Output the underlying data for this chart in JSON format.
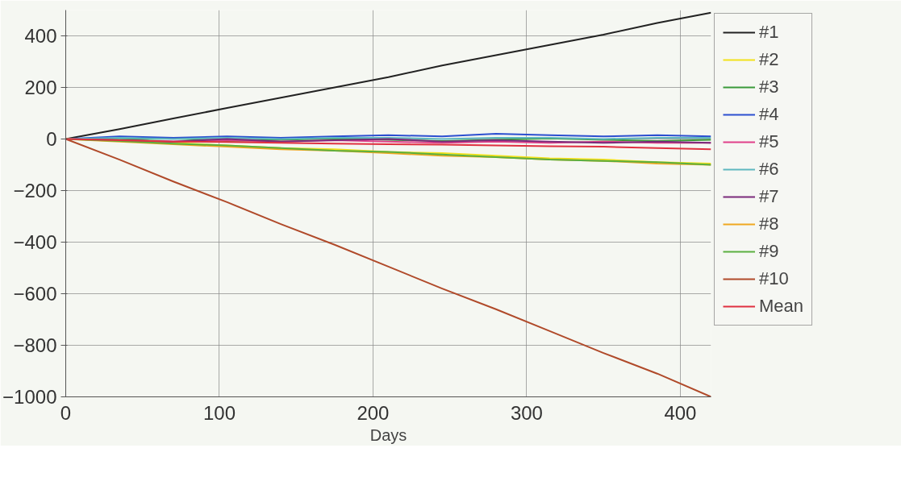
{
  "chart_data": {
    "type": "line",
    "xlabel": "Days",
    "x": [
      0,
      35,
      70,
      105,
      140,
      175,
      210,
      245,
      280,
      315,
      350,
      385,
      420
    ],
    "xlim": [
      0,
      420
    ],
    "xticks": [
      0,
      100,
      200,
      300,
      400
    ],
    "ylim": [
      -1000,
      500
    ],
    "yticks": [
      -1000,
      -800,
      -600,
      -400,
      -200,
      0,
      200,
      400
    ],
    "grid": true,
    "legend": "right",
    "line_style": "solid",
    "marker": "none",
    "series": [
      {
        "name": "#1",
        "color": "#222222",
        "values": [
          0,
          38,
          80,
          120,
          160,
          200,
          240,
          285,
          325,
          365,
          405,
          450,
          490
        ]
      },
      {
        "name": "#2",
        "color": "#f2e21b",
        "values": [
          0,
          -5,
          -15,
          -25,
          -35,
          -40,
          -50,
          -55,
          -65,
          -75,
          -80,
          -90,
          -95
        ]
      },
      {
        "name": "#3",
        "color": "#3a9a3a",
        "values": [
          0,
          -3,
          2,
          -8,
          -3,
          2,
          -3,
          -8,
          -3,
          2,
          -3,
          -8,
          -3
        ]
      },
      {
        "name": "#4",
        "color": "#2c4fd0",
        "values": [
          0,
          10,
          5,
          10,
          5,
          10,
          15,
          10,
          20,
          15,
          10,
          15,
          10
        ]
      },
      {
        "name": "#5",
        "color": "#e0408a",
        "values": [
          0,
          -5,
          -10,
          -5,
          -10,
          -5,
          -10,
          -15,
          -10,
          -15,
          -10,
          -15,
          -15
        ]
      },
      {
        "name": "#6",
        "color": "#5fb7c0",
        "values": [
          0,
          5,
          0,
          5,
          0,
          5,
          5,
          0,
          5,
          5,
          0,
          5,
          5
        ]
      },
      {
        "name": "#7",
        "color": "#7a2a7a",
        "values": [
          0,
          -5,
          -10,
          0,
          -10,
          -5,
          0,
          -10,
          -5,
          -10,
          -15,
          -10,
          -15
        ]
      },
      {
        "name": "#8",
        "color": "#f0a820",
        "values": [
          0,
          -10,
          -20,
          -30,
          -40,
          -45,
          -55,
          -65,
          -70,
          -80,
          -85,
          -95,
          -100
        ]
      },
      {
        "name": "#9",
        "color": "#5ab040",
        "values": [
          0,
          -8,
          -18,
          -25,
          -35,
          -45,
          -50,
          -60,
          -70,
          -80,
          -85,
          -90,
          -100
        ]
      },
      {
        "name": "#10",
        "color": "#b04a2a",
        "values": [
          0,
          -80,
          -165,
          -245,
          -330,
          -410,
          -495,
          -580,
          -660,
          -745,
          -830,
          -910,
          -1000
        ]
      },
      {
        "name": "Mean",
        "color": "#e03040",
        "values": [
          0,
          -5,
          -10,
          -12,
          -15,
          -18,
          -20,
          -22,
          -25,
          -28,
          -30,
          -35,
          -40
        ]
      }
    ]
  }
}
